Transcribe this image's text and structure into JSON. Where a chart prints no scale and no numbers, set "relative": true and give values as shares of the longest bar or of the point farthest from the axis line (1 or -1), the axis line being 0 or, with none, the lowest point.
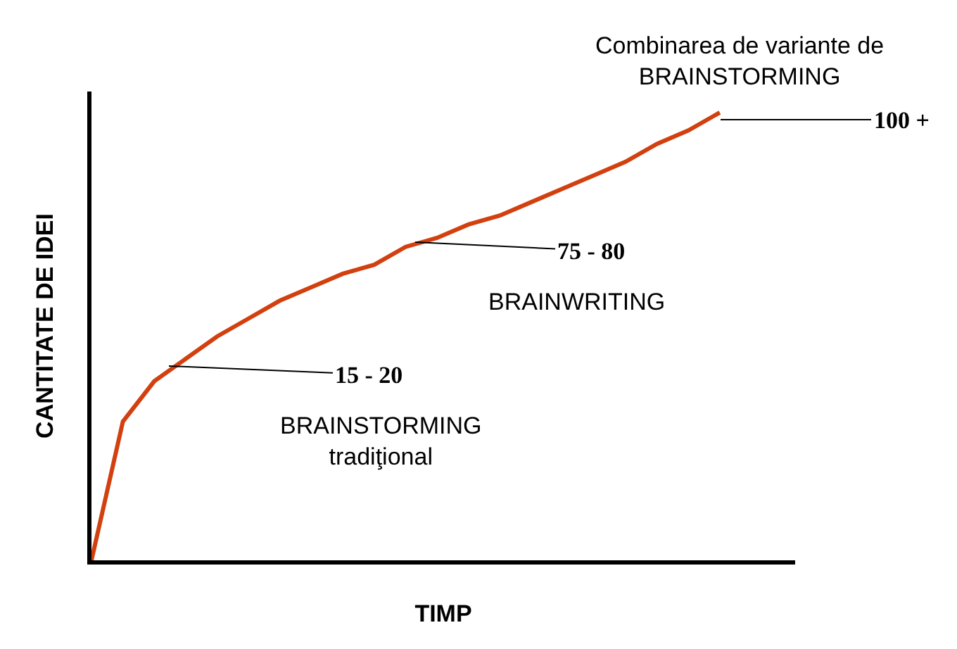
{
  "chart_data": {
    "type": "line",
    "relative": true,
    "xlabel": "TIMP",
    "ylabel": "CANTITATE DE IDEI",
    "categories": [
      null,
      null,
      null,
      null,
      null,
      null,
      null,
      null,
      null,
      null,
      null,
      null,
      null,
      null,
      null,
      null,
      null,
      null,
      null,
      null,
      null
    ],
    "series": [
      {
        "color": "#d2400f",
        "values": [
          0,
          0.31,
          0.4,
          0.45,
          0.5,
          0.54,
          0.58,
          0.61,
          0.64,
          0.66,
          0.7,
          0.72,
          0.75,
          0.77,
          0.8,
          0.83,
          0.86,
          0.89,
          0.93,
          0.96,
          1.0
        ]
      }
    ],
    "annotations": [
      "15 - 20",
      "75 - 80",
      "100 +",
      "BRAINSTORMING\ntradiţional",
      "BRAINWRITING",
      "Combinarea de variante de\nBRAINSTORMING"
    ],
    "legend": false,
    "marker": "none",
    "line_style": "solid"
  }
}
